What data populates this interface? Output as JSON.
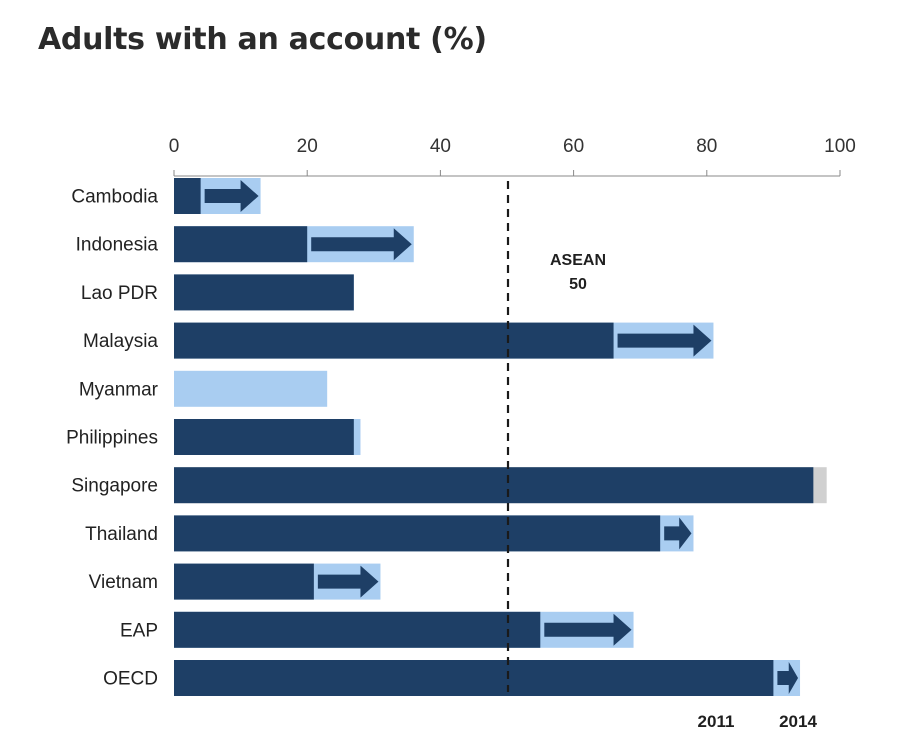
{
  "title": "Adults with an account (%)",
  "colors": {
    "bar_2011": "#1e3f66",
    "bar_2014": "#a9cdf1",
    "arrow": "#1e3f66",
    "singapore_2014": "#d0d0d0",
    "reference_line": "#1a1a1a",
    "axis": "#888888"
  },
  "chart_data": {
    "type": "bar",
    "orientation": "horizontal",
    "title": "Adults with an account (%)",
    "categories": [
      "Cambodia",
      "Indonesia",
      "Lao PDR",
      "Malaysia",
      "Myanmar",
      "Philippines",
      "Singapore",
      "Thailand",
      "Vietnam",
      "EAP",
      "OECD"
    ],
    "series": [
      {
        "name": "2011",
        "values": [
          4,
          20,
          27,
          66,
          null,
          27,
          96,
          73,
          21,
          55,
          90
        ]
      },
      {
        "name": "2014",
        "values": [
          13,
          36,
          27,
          81,
          23,
          28,
          98,
          78,
          31,
          69,
          94
        ]
      }
    ],
    "xlim": [
      0,
      100
    ],
    "xticks": [
      0,
      20,
      40,
      60,
      80,
      100
    ],
    "reference_line": {
      "value": 50,
      "label_line1": "ASEAN",
      "label_line2": "50"
    },
    "legend": [
      "2011",
      "2014"
    ],
    "legend_position": "bottom-right",
    "grid": false
  }
}
